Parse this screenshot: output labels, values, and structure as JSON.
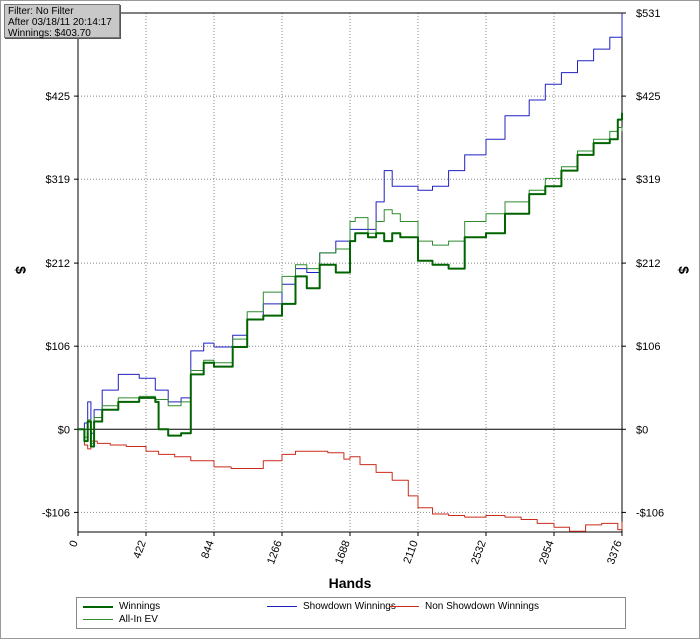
{
  "info": {
    "filter": "Filter: No Filter",
    "after": "After 03/18/11 20:14:17",
    "winnings": "Winnings: $403.70"
  },
  "legend": {
    "items": [
      {
        "label": "Winnings",
        "color": "#006400"
      },
      {
        "label": "Showdown Winnings",
        "color": "#2020c0"
      },
      {
        "label": "Non Showdown Winnings",
        "color": "#cc2a1a"
      },
      {
        "label": "All-In EV",
        "color": "#2e8b2e"
      }
    ]
  },
  "chart_data": {
    "type": "line",
    "xlabel": "Hands",
    "ylabel": "$",
    "ylabel_right": "$",
    "xlim": [
      0,
      3376
    ],
    "ylim": [
      -131,
      531
    ],
    "x_ticks": [
      "0",
      "422",
      "844",
      "1266",
      "1688",
      "2110",
      "2532",
      "2954",
      "3376"
    ],
    "y_ticks": [
      {
        "value": -106,
        "label": "-$106"
      },
      {
        "value": 0,
        "label": "$0"
      },
      {
        "value": 106,
        "label": "$106"
      },
      {
        "value": 212,
        "label": "$212"
      },
      {
        "value": 319,
        "label": "$319"
      },
      {
        "value": 425,
        "label": "$425"
      },
      {
        "value": 531,
        "label": "$531"
      }
    ],
    "grid": true,
    "legend_position": "bottom",
    "series": [
      {
        "name": "Winnings",
        "color": "#006400",
        "x": [
          0,
          40,
          60,
          80,
          100,
          150,
          250,
          380,
          480,
          500,
          560,
          640,
          700,
          780,
          844,
          960,
          1050,
          1150,
          1266,
          1350,
          1420,
          1500,
          1600,
          1688,
          1720,
          1800,
          1850,
          1900,
          1950,
          2000,
          2110,
          2200,
          2300,
          2400,
          2532,
          2650,
          2800,
          2900,
          3000,
          3100,
          3200,
          3300,
          3350,
          3376
        ],
        "values": [
          0,
          -15,
          10,
          -22,
          10,
          25,
          35,
          40,
          35,
          0,
          -8,
          -5,
          70,
          85,
          80,
          105,
          140,
          145,
          160,
          195,
          180,
          210,
          200,
          240,
          250,
          245,
          250,
          240,
          250,
          245,
          215,
          210,
          205,
          245,
          250,
          275,
          300,
          310,
          330,
          350,
          365,
          370,
          395,
          403.7
        ]
      },
      {
        "name": "Showdown Winnings",
        "color": "#2020c0",
        "x": [
          0,
          40,
          60,
          80,
          100,
          150,
          250,
          380,
          480,
          560,
          640,
          700,
          780,
          844,
          960,
          1050,
          1150,
          1266,
          1350,
          1420,
          1500,
          1600,
          1688,
          1750,
          1850,
          1900,
          1950,
          2000,
          2110,
          2200,
          2300,
          2400,
          2532,
          2650,
          2800,
          2900,
          3000,
          3100,
          3200,
          3300,
          3376
        ],
        "values": [
          0,
          8,
          35,
          -5,
          25,
          50,
          70,
          65,
          50,
          35,
          40,
          100,
          110,
          105,
          120,
          140,
          160,
          185,
          205,
          200,
          225,
          240,
          255,
          255,
          290,
          330,
          310,
          310,
          305,
          310,
          330,
          350,
          370,
          400,
          420,
          440,
          455,
          470,
          485,
          500,
          531
        ]
      },
      {
        "name": "Non Showdown Winnings",
        "color": "#cc2a1a",
        "x": [
          0,
          40,
          60,
          80,
          120,
          200,
          300,
          422,
          500,
          600,
          700,
          844,
          950,
          1050,
          1150,
          1266,
          1350,
          1450,
          1550,
          1650,
          1688,
          1750,
          1850,
          1950,
          2050,
          2110,
          2200,
          2300,
          2400,
          2532,
          2650,
          2750,
          2850,
          2954,
          3050,
          3150,
          3250,
          3350,
          3376
        ],
        "values": [
          0,
          -20,
          -25,
          -15,
          -18,
          -20,
          -22,
          -28,
          -32,
          -35,
          -40,
          -48,
          -50,
          -50,
          -40,
          -32,
          -28,
          -28,
          -30,
          -38,
          -35,
          -45,
          -55,
          -65,
          -85,
          -100,
          -108,
          -110,
          -112,
          -110,
          -112,
          -115,
          -120,
          -125,
          -130,
          -122,
          -120,
          -128,
          -118
        ]
      },
      {
        "name": "All-In EV",
        "color": "#2e8b2e",
        "x": [
          0,
          40,
          60,
          80,
          100,
          150,
          250,
          380,
          480,
          560,
          640,
          700,
          780,
          844,
          960,
          1050,
          1150,
          1266,
          1350,
          1420,
          1500,
          1600,
          1688,
          1720,
          1800,
          1850,
          1900,
          1950,
          2000,
          2110,
          2200,
          2300,
          2400,
          2532,
          2650,
          2800,
          2900,
          3000,
          3100,
          3200,
          3300,
          3350,
          3376
        ],
        "values": [
          0,
          -10,
          12,
          -18,
          15,
          30,
          40,
          42,
          38,
          30,
          35,
          75,
          88,
          85,
          115,
          150,
          175,
          195,
          210,
          205,
          225,
          230,
          265,
          270,
          250,
          265,
          280,
          275,
          265,
          240,
          235,
          240,
          265,
          275,
          290,
          305,
          320,
          335,
          355,
          370,
          380,
          385,
          380
        ]
      }
    ]
  }
}
